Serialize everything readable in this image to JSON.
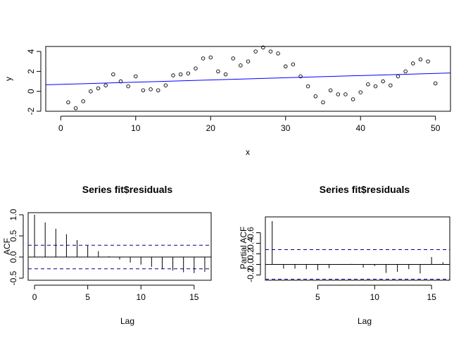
{
  "chart_data": [
    {
      "type": "scatter",
      "title": "",
      "xlabel": "x",
      "ylabel": "y",
      "xlim": [
        -2,
        52
      ],
      "ylim": [
        -2,
        4.5
      ],
      "xticks": [
        0,
        10,
        20,
        30,
        40,
        50
      ],
      "yticks": [
        -2,
        0,
        2,
        4
      ],
      "grid": false,
      "series": [
        {
          "marker": "open-circle",
          "x": [
            1,
            2,
            3,
            4,
            5,
            6,
            7,
            8,
            9,
            10,
            11,
            12,
            13,
            14,
            15,
            16,
            17,
            18,
            19,
            20,
            21,
            22,
            23,
            24,
            25,
            26,
            27,
            28,
            29,
            30,
            31,
            32,
            33,
            34,
            35,
            36,
            37,
            38,
            39,
            40,
            41,
            42,
            43,
            44,
            45,
            46,
            47,
            48,
            49,
            50
          ],
          "y": [
            -1.1,
            -1.7,
            -1.0,
            0.0,
            0.3,
            0.6,
            1.7,
            1.0,
            0.5,
            1.5,
            0.1,
            0.2,
            0.1,
            0.6,
            1.6,
            1.7,
            1.8,
            2.3,
            3.3,
            3.4,
            2.0,
            1.7,
            3.3,
            2.6,
            3.0,
            4.0,
            4.4,
            4.0,
            3.8,
            2.5,
            2.7,
            1.5,
            0.5,
            -0.5,
            -1.1,
            0.1,
            -0.3,
            -0.3,
            -0.8,
            -0.1,
            0.7,
            0.5,
            1.0,
            0.6,
            1.5,
            2.0,
            2.8,
            3.2,
            3.0,
            0.8
          ]
        }
      ],
      "fit_line": {
        "color": "#0000ff",
        "intercept": 0.7,
        "slope": 0.022
      }
    },
    {
      "type": "bar",
      "title": "Series  fit$residuals",
      "xlabel": "Lag",
      "ylabel": "ACF",
      "xlim": [
        -0.6,
        16.6
      ],
      "ylim": [
        -0.55,
        1.05
      ],
      "xticks": [
        0,
        5,
        10,
        15
      ],
      "yticks": [
        -0.5,
        0.0,
        0.5,
        1.0
      ],
      "x": [
        0,
        1,
        2,
        3,
        4,
        5,
        6,
        7,
        8,
        9,
        10,
        11,
        12,
        13,
        14,
        15,
        16
      ],
      "values": [
        1.0,
        0.82,
        0.67,
        0.54,
        0.4,
        0.27,
        0.14,
        0.02,
        -0.06,
        -0.13,
        -0.18,
        -0.23,
        -0.28,
        -0.32,
        -0.36,
        -0.38,
        -0.35
      ],
      "ci_bound": 0.28,
      "ci_color": "#00008b"
    },
    {
      "type": "bar",
      "title": "Series  fit$residuals",
      "xlabel": "Lag",
      "ylabel": "Partial ACF",
      "xlim": [
        0.4,
        16.6
      ],
      "ylim": [
        -0.3,
        0.9
      ],
      "xticks": [
        5,
        10,
        15
      ],
      "yticks": [
        -0.2,
        0.0,
        0.2,
        0.4,
        0.6
      ],
      "x": [
        1,
        2,
        3,
        4,
        5,
        6,
        7,
        8,
        9,
        10,
        11,
        12,
        13,
        14,
        15,
        16
      ],
      "values": [
        0.82,
        -0.08,
        -0.08,
        -0.09,
        -0.11,
        -0.07,
        0.0,
        0.01,
        -0.06,
        -0.03,
        -0.16,
        -0.14,
        -0.09,
        -0.17,
        0.14,
        0.04
      ],
      "ci_bound": 0.28,
      "ci_color": "#00008b"
    }
  ]
}
